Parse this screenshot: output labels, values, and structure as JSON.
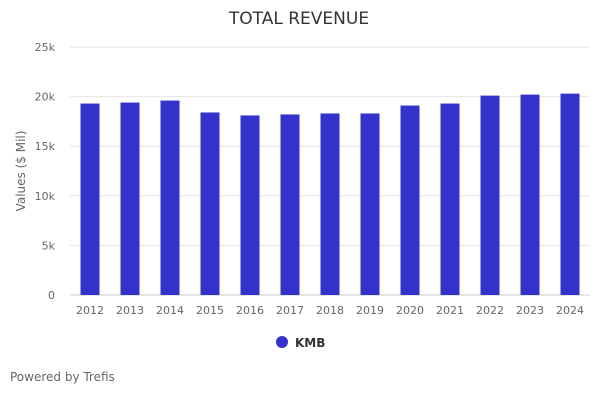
{
  "chart_data": {
    "type": "bar",
    "title": "TOTAL REVENUE",
    "xlabel": "",
    "ylabel": "Values ($ Mil)",
    "categories": [
      "2012",
      "2013",
      "2014",
      "2015",
      "2016",
      "2017",
      "2018",
      "2019",
      "2020",
      "2021",
      "2022",
      "2023",
      "2024"
    ],
    "series": [
      {
        "name": "KMB",
        "values": [
          19300,
          19400,
          19600,
          18400,
          18100,
          18200,
          18300,
          18300,
          19100,
          19300,
          20100,
          20200,
          20300
        ]
      }
    ],
    "ylim": [
      0,
      25000
    ],
    "yticks": [
      0,
      5000,
      10000,
      15000,
      20000,
      25000
    ],
    "ytick_labels": [
      "0",
      "5k",
      "10k",
      "15k",
      "20k",
      "25k"
    ],
    "grid": true,
    "legend_position": "bottom-center",
    "bar_color": "#3333cc"
  },
  "footer": {
    "text": "Powered by Trefis"
  }
}
